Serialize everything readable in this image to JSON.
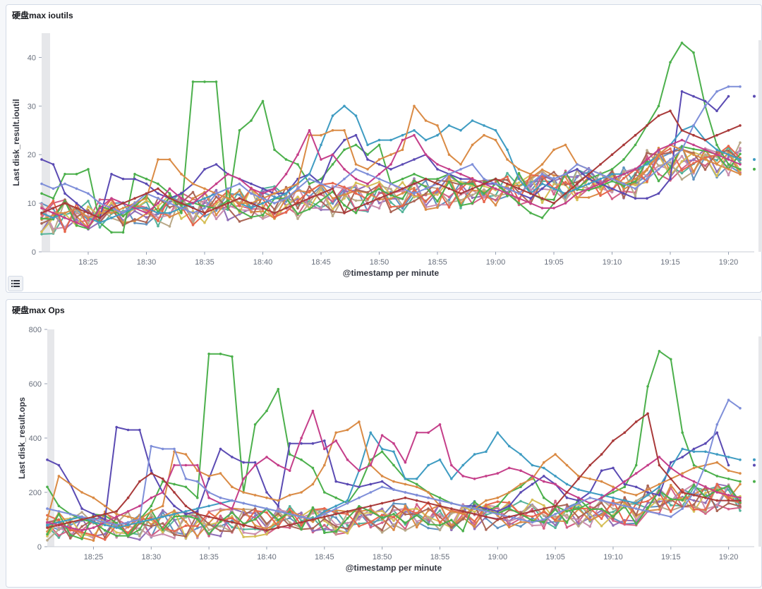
{
  "panels": [
    {
      "title": "硬盘max ioutils"
    },
    {
      "title": "硬盘max Ops"
    }
  ],
  "legend_toggle": {
    "icon": "list-icon"
  },
  "chart_data": [
    {
      "type": "line",
      "title": "硬盘max ioutils",
      "xlabel": "@timestamp per minute",
      "ylabel": "Last disk_result.ioutil",
      "ylim": [
        0,
        45
      ],
      "yticks": [
        0,
        10,
        20,
        30,
        40
      ],
      "x_tick_labels": [
        "18:25",
        "18:30",
        "18:35",
        "18:40",
        "18:45",
        "18:50",
        "18:55",
        "19:00",
        "19:05",
        "19:10",
        "19:15",
        "19:20"
      ],
      "x_tick_minutes": [
        5,
        10,
        15,
        20,
        25,
        30,
        35,
        40,
        45,
        50,
        55,
        60
      ],
      "xlim_minutes": [
        1,
        61
      ],
      "series_count": 18,
      "series_colors": [
        "#54b399",
        "#6092c0",
        "#d36086",
        "#9170b8",
        "#ca8eae",
        "#d6bf57",
        "#b9a888",
        "#da8b45",
        "#aa6556",
        "#e7664c",
        "#4cb04c",
        "#3f9cc2",
        "#c53f8a",
        "#5b4bb3",
        "#a93a3a",
        "#c28a2f",
        "#7f8fd9",
        "#9a2fa8"
      ],
      "highlight_series": [
        {
          "name": "s-green-spike",
          "color": "#4cb04c",
          "values": [
            12,
            11,
            16,
            16,
            17,
            6,
            4,
            4,
            16,
            15,
            14,
            12,
            8,
            35,
            35,
            35,
            9,
            25,
            27,
            31,
            21,
            19,
            18,
            14,
            15,
            18,
            21,
            22,
            20,
            22,
            14,
            15,
            16,
            15,
            15,
            16,
            14,
            14,
            12,
            14,
            12,
            10,
            8,
            7,
            10,
            12,
            13,
            15,
            16,
            17,
            19,
            22,
            26,
            30,
            39,
            43,
            41,
            30,
            22,
            18,
            17
          ]
        },
        {
          "name": "s-purple",
          "color": "#5b4bb3",
          "values": [
            19,
            18,
            12,
            10,
            8,
            7,
            16,
            15,
            15,
            14,
            12,
            11,
            12,
            14,
            17,
            18,
            16,
            15,
            14,
            13,
            12,
            12,
            15,
            16,
            14,
            20,
            23,
            24,
            19,
            18,
            17,
            18,
            19,
            20,
            17,
            16,
            15,
            15,
            14,
            14,
            13,
            12,
            11,
            13,
            15,
            16,
            17,
            15,
            14,
            13,
            12,
            11,
            11,
            12,
            15,
            33,
            32,
            31,
            29,
            32,
            null
          ]
        },
        {
          "name": "s-teal",
          "color": "#3f9cc2",
          "values": [
            8,
            7,
            8,
            9,
            7,
            6,
            7,
            8,
            9,
            9,
            8,
            8,
            9,
            10,
            11,
            12,
            11,
            10,
            9,
            10,
            11,
            12,
            14,
            16,
            22,
            28,
            30,
            28,
            22,
            23,
            23,
            24,
            25,
            23,
            24,
            26,
            25,
            27,
            26,
            25,
            21,
            15,
            12,
            14,
            13,
            12,
            13,
            14,
            15,
            16,
            16,
            17,
            18,
            20,
            22,
            25,
            26,
            23,
            21,
            20,
            19
          ]
        },
        {
          "name": "s-gold",
          "color": "#da8b45",
          "values": [
            9,
            8,
            8,
            9,
            7,
            8,
            8,
            9,
            10,
            11,
            19,
            19,
            16,
            14,
            13,
            12,
            11,
            10,
            10,
            11,
            12,
            13,
            14,
            24,
            24,
            25,
            25,
            18,
            17,
            19,
            20,
            21,
            30,
            27,
            26,
            20,
            18,
            22,
            24,
            23,
            19,
            17,
            16,
            18,
            21,
            22,
            18,
            17,
            16,
            15,
            14,
            15,
            17,
            20,
            22,
            21,
            20,
            19,
            18,
            17,
            16
          ]
        },
        {
          "name": "s-magenta",
          "color": "#c53f8a",
          "values": [
            9,
            8,
            7,
            6,
            5,
            9,
            11,
            10,
            9,
            8,
            10,
            13,
            11,
            10,
            12,
            14,
            16,
            15,
            13,
            12,
            13,
            16,
            20,
            25,
            19,
            20,
            17,
            15,
            14,
            16,
            18,
            23,
            24,
            20,
            18,
            17,
            16,
            15,
            14,
            13,
            12,
            11,
            10,
            9,
            9,
            10,
            12,
            13,
            14,
            15,
            16,
            17,
            19,
            21,
            22,
            23,
            22,
            21,
            20,
            19,
            18
          ]
        },
        {
          "name": "s-lightblue",
          "color": "#7f8fd9",
          "values": [
            14,
            13,
            14,
            13,
            12,
            10,
            9,
            8,
            10,
            12,
            11,
            10,
            9,
            8,
            9,
            12,
            13,
            14,
            12,
            11,
            10,
            11,
            13,
            15,
            14,
            13,
            15,
            17,
            16,
            15,
            14,
            13,
            12,
            13,
            14,
            16,
            17,
            18,
            15,
            14,
            13,
            12,
            14,
            16,
            15,
            16,
            18,
            17,
            16,
            15,
            14,
            13,
            15,
            17,
            19,
            21,
            26,
            30,
            33,
            34,
            34
          ]
        },
        {
          "name": "s-maroon",
          "color": "#a93a3a",
          "values": [
            8,
            9,
            10,
            9,
            8,
            7,
            9,
            10,
            11,
            12,
            13,
            11,
            10,
            9,
            8,
            9,
            10,
            11,
            10,
            9,
            8,
            9,
            10,
            11,
            12,
            13,
            8,
            9,
            10,
            11,
            12,
            13,
            14,
            15,
            14,
            13,
            12,
            13,
            14,
            15,
            14,
            13,
            12,
            11,
            10,
            12,
            14,
            16,
            18,
            20,
            22,
            24,
            26,
            28,
            29,
            25,
            24,
            23,
            24,
            25,
            26
          ]
        }
      ]
    },
    {
      "type": "line",
      "title": "硬盘max Ops",
      "xlabel": "@timestamp per minute",
      "ylabel": "Last disk_result.ops",
      "ylim": [
        0,
        800
      ],
      "yticks": [
        0,
        200,
        400,
        600,
        800
      ],
      "x_tick_labels": [
        "18:25",
        "18:30",
        "18:35",
        "18:40",
        "18:45",
        "18:50",
        "18:55",
        "19:00",
        "19:05",
        "19:10",
        "19:15",
        "19:20"
      ],
      "x_tick_minutes": [
        5,
        10,
        15,
        20,
        25,
        30,
        35,
        40,
        45,
        50,
        55,
        60
      ],
      "xlim_minutes": [
        1,
        61
      ],
      "series_count": 18,
      "series_colors": [
        "#54b399",
        "#6092c0",
        "#d36086",
        "#9170b8",
        "#ca8eae",
        "#d6bf57",
        "#b9a888",
        "#da8b45",
        "#aa6556",
        "#e7664c",
        "#4cb04c",
        "#3f9cc2",
        "#c53f8a",
        "#5b4bb3",
        "#a93a3a",
        "#c28a2f",
        "#7f8fd9",
        "#9a2fa8"
      ],
      "highlight_series": [
        {
          "name": "s-green-spike",
          "color": "#4cb04c",
          "values": [
            220,
            150,
            120,
            100,
            90,
            60,
            40,
            40,
            100,
            150,
            240,
            230,
            220,
            180,
            710,
            710,
            700,
            200,
            450,
            500,
            580,
            340,
            320,
            290,
            200,
            180,
            160,
            220,
            320,
            350,
            300,
            250,
            230,
            200,
            180,
            160,
            150,
            140,
            130,
            150,
            200,
            220,
            260,
            180,
            150,
            130,
            140,
            160,
            180,
            200,
            220,
            300,
            590,
            720,
            690,
            420,
            300,
            280,
            260,
            250,
            240
          ]
        },
        {
          "name": "s-purple",
          "color": "#5b4bb3",
          "values": [
            320,
            300,
            230,
            140,
            120,
            100,
            440,
            430,
            430,
            280,
            200,
            150,
            120,
            130,
            250,
            360,
            330,
            310,
            310,
            200,
            150,
            380,
            380,
            380,
            390,
            240,
            230,
            220,
            230,
            240,
            210,
            200,
            190,
            180,
            170,
            160,
            150,
            150,
            140,
            130,
            150,
            200,
            230,
            260,
            230,
            180,
            170,
            200,
            280,
            290,
            230,
            220,
            200,
            190,
            310,
            330,
            360,
            380,
            420,
            300,
            null
          ]
        },
        {
          "name": "s-teal",
          "color": "#3f9cc2",
          "values": [
            80,
            90,
            100,
            110,
            90,
            80,
            70,
            80,
            90,
            100,
            110,
            120,
            130,
            140,
            150,
            160,
            170,
            160,
            150,
            140,
            130,
            120,
            110,
            100,
            130,
            150,
            170,
            280,
            420,
            360,
            350,
            250,
            250,
            300,
            320,
            250,
            300,
            340,
            350,
            420,
            370,
            340,
            300,
            290,
            260,
            230,
            210,
            200,
            190,
            180,
            170,
            160,
            190,
            220,
            290,
            360,
            350,
            350,
            340,
            330,
            320
          ]
        },
        {
          "name": "s-gold",
          "color": "#da8b45",
          "values": [
            100,
            260,
            230,
            200,
            180,
            150,
            120,
            110,
            100,
            130,
            150,
            350,
            340,
            280,
            260,
            270,
            220,
            200,
            190,
            180,
            170,
            190,
            200,
            230,
            300,
            420,
            430,
            460,
            300,
            260,
            240,
            230,
            220,
            200,
            150,
            130,
            120,
            140,
            170,
            180,
            200,
            230,
            250,
            310,
            340,
            300,
            260,
            250,
            240,
            220,
            200,
            190,
            210,
            230,
            250,
            270,
            290,
            300,
            310,
            280,
            270
          ]
        },
        {
          "name": "s-magenta",
          "color": "#c53f8a",
          "values": [
            90,
            80,
            70,
            60,
            70,
            90,
            110,
            130,
            150,
            180,
            200,
            300,
            300,
            300,
            180,
            160,
            140,
            250,
            300,
            330,
            300,
            280,
            400,
            500,
            360,
            390,
            320,
            280,
            300,
            410,
            380,
            310,
            420,
            420,
            450,
            300,
            260,
            250,
            260,
            270,
            290,
            280,
            260,
            240,
            230,
            200,
            180,
            160,
            180,
            210,
            240,
            270,
            300,
            330,
            290,
            260,
            240,
            220,
            200,
            190,
            180
          ]
        },
        {
          "name": "s-lightblue",
          "color": "#7f8fd9",
          "values": [
            140,
            130,
            120,
            110,
            100,
            90,
            80,
            90,
            100,
            370,
            360,
            360,
            250,
            240,
            200,
            180,
            170,
            160,
            150,
            140,
            130,
            120,
            110,
            100,
            120,
            140,
            160,
            180,
            200,
            220,
            210,
            200,
            190,
            180,
            170,
            160,
            150,
            140,
            130,
            120,
            110,
            100,
            90,
            100,
            120,
            140,
            160,
            180,
            170,
            160,
            150,
            140,
            130,
            120,
            110,
            140,
            200,
            300,
            450,
            540,
            510
          ]
        },
        {
          "name": "s-maroon",
          "color": "#a93a3a",
          "values": [
            70,
            80,
            90,
            100,
            110,
            120,
            130,
            180,
            240,
            270,
            250,
            200,
            150,
            120,
            110,
            100,
            90,
            80,
            70,
            60,
            70,
            80,
            90,
            100,
            110,
            120,
            130,
            140,
            150,
            160,
            170,
            180,
            170,
            160,
            150,
            140,
            130,
            120,
            110,
            100,
            110,
            120,
            130,
            140,
            150,
            200,
            250,
            300,
            340,
            390,
            420,
            460,
            490,
            300,
            250,
            200,
            190,
            180,
            170,
            170,
            170
          ]
        }
      ]
    }
  ]
}
